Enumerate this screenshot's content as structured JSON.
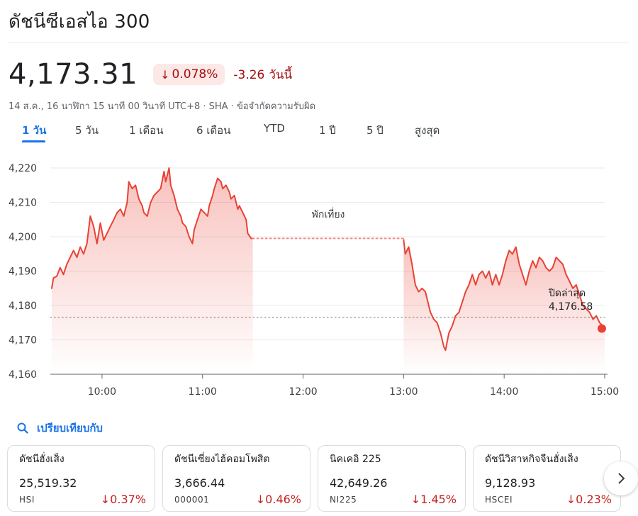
{
  "header": {
    "title": "ดัชนีซีเอสไอ 300",
    "price": "4,173.31",
    "change_pct": "0.078%",
    "change_abs": "-3.26",
    "change_period": "วันนี้",
    "meta": "14 ส.ค., 16 นาฬิกา 15 นาที 00 วินาที UTC+8 · SHA · ข้อจำกัดความรับผิด"
  },
  "tabs": [
    "1 วัน",
    "5 วัน",
    "1 เดือน",
    "6 เดือน",
    "YTD",
    "1 ปี",
    "5 ปี",
    "สูงสุด"
  ],
  "active_tab": "1 วัน",
  "colors": {
    "negative": "#c5221f",
    "accent": "#1a73e8",
    "line": "#e94235"
  },
  "chart_data": {
    "type": "area",
    "x_ticks": [
      "10:00",
      "11:00",
      "12:00",
      "13:00",
      "14:00",
      "15:00"
    ],
    "y_ticks": [
      "4,160",
      "4,170",
      "4,180",
      "4,190",
      "4,200",
      "4,210",
      "4,220"
    ],
    "ylim": [
      4160,
      4220
    ],
    "xlim": [
      "09:30",
      "15:00"
    ],
    "previous_close": 4176.58,
    "previous_close_label": "ปิดล่าสุด",
    "previous_close_text": "4,176.58",
    "break_label": "พักเที่ยง",
    "break_range": [
      "11:30",
      "13:00"
    ],
    "morning": [
      [
        "09:30",
        4185
      ],
      [
        "09:31",
        4188
      ],
      [
        "09:33",
        4188.5
      ],
      [
        "09:35",
        4191
      ],
      [
        "09:37",
        4189
      ],
      [
        "09:39",
        4192
      ],
      [
        "09:41",
        4194
      ],
      [
        "09:43",
        4196
      ],
      [
        "09:45",
        4194
      ],
      [
        "09:47",
        4197
      ],
      [
        "09:49",
        4195
      ],
      [
        "09:51",
        4198
      ],
      [
        "09:53",
        4206
      ],
      [
        "09:55",
        4203
      ],
      [
        "09:57",
        4198
      ],
      [
        "09:59",
        4204
      ],
      [
        "10:01",
        4199
      ],
      [
        "10:03",
        4201
      ],
      [
        "10:05",
        4203
      ],
      [
        "10:07",
        4205
      ],
      [
        "10:09",
        4207
      ],
      [
        "10:11",
        4208
      ],
      [
        "10:13",
        4206
      ],
      [
        "10:15",
        4210
      ],
      [
        "10:16",
        4216
      ],
      [
        "10:18",
        4214
      ],
      [
        "10:20",
        4215
      ],
      [
        "10:22",
        4211
      ],
      [
        "10:24",
        4209
      ],
      [
        "10:25",
        4207
      ],
      [
        "10:27",
        4206
      ],
      [
        "10:29",
        4210
      ],
      [
        "10:31",
        4212
      ],
      [
        "10:33",
        4213
      ],
      [
        "10:35",
        4214
      ],
      [
        "10:37",
        4219
      ],
      [
        "10:38",
        4216
      ],
      [
        "10:40",
        4220
      ],
      [
        "10:41",
        4215
      ],
      [
        "10:43",
        4212
      ],
      [
        "10:45",
        4208
      ],
      [
        "10:47",
        4206
      ],
      [
        "10:48",
        4204
      ],
      [
        "10:50",
        4203
      ],
      [
        "10:52",
        4200
      ],
      [
        "10:54",
        4198
      ],
      [
        "10:55",
        4202
      ],
      [
        "10:57",
        4205
      ],
      [
        "10:59",
        4208
      ],
      [
        "11:01",
        4207
      ],
      [
        "11:03",
        4206
      ],
      [
        "11:04",
        4209
      ],
      [
        "11:06",
        4212
      ],
      [
        "11:07",
        4214
      ],
      [
        "11:09",
        4217
      ],
      [
        "11:11",
        4216
      ],
      [
        "11:12",
        4214
      ],
      [
        "11:14",
        4215
      ],
      [
        "11:16",
        4213
      ],
      [
        "11:17",
        4211
      ],
      [
        "11:19",
        4212
      ],
      [
        "11:21",
        4208
      ],
      [
        "11:22",
        4209
      ],
      [
        "11:24",
        4207
      ],
      [
        "11:26",
        4205
      ],
      [
        "11:27",
        4201
      ],
      [
        "11:29",
        4199.5
      ],
      [
        "11:30",
        4199.5
      ]
    ],
    "afternoon": [
      [
        "13:00",
        4199
      ],
      [
        "13:01",
        4195
      ],
      [
        "13:03",
        4197
      ],
      [
        "13:05",
        4192
      ],
      [
        "13:07",
        4186
      ],
      [
        "13:09",
        4184
      ],
      [
        "13:11",
        4185
      ],
      [
        "13:13",
        4184
      ],
      [
        "13:15",
        4180
      ],
      [
        "13:16",
        4178
      ],
      [
        "13:18",
        4176
      ],
      [
        "13:20",
        4175
      ],
      [
        "13:22",
        4172
      ],
      [
        "13:24",
        4168
      ],
      [
        "13:25",
        4167
      ],
      [
        "13:27",
        4172
      ],
      [
        "13:29",
        4174
      ],
      [
        "13:31",
        4177
      ],
      [
        "13:33",
        4178
      ],
      [
        "13:35",
        4181
      ],
      [
        "13:37",
        4184
      ],
      [
        "13:39",
        4186
      ],
      [
        "13:41",
        4189
      ],
      [
        "13:43",
        4186
      ],
      [
        "13:45",
        4189
      ],
      [
        "13:47",
        4190
      ],
      [
        "13:49",
        4188
      ],
      [
        "13:51",
        4190
      ],
      [
        "13:53",
        4186
      ],
      [
        "13:55",
        4189
      ],
      [
        "13:57",
        4186
      ],
      [
        "13:59",
        4189
      ],
      [
        "14:01",
        4193
      ],
      [
        "14:03",
        4196
      ],
      [
        "14:05",
        4195
      ],
      [
        "14:07",
        4197
      ],
      [
        "14:09",
        4192
      ],
      [
        "14:11",
        4189
      ],
      [
        "14:13",
        4186
      ],
      [
        "14:15",
        4190
      ],
      [
        "14:17",
        4193
      ],
      [
        "14:19",
        4191
      ],
      [
        "14:21",
        4194
      ],
      [
        "14:23",
        4193
      ],
      [
        "14:25",
        4191
      ],
      [
        "14:27",
        4190
      ],
      [
        "14:29",
        4191
      ],
      [
        "14:31",
        4194
      ],
      [
        "14:33",
        4193
      ],
      [
        "14:35",
        4192
      ],
      [
        "14:37",
        4189
      ],
      [
        "14:39",
        4187
      ],
      [
        "14:41",
        4185
      ],
      [
        "14:43",
        4186
      ],
      [
        "14:45",
        4183
      ],
      [
        "14:47",
        4180
      ],
      [
        "14:49",
        4179
      ],
      [
        "14:51",
        4178
      ],
      [
        "14:53",
        4176
      ],
      [
        "14:55",
        4177
      ],
      [
        "14:57",
        4175
      ],
      [
        "14:59",
        4174
      ],
      [
        "15:00",
        4173.31
      ]
    ]
  },
  "compare": {
    "label": "เปรียบเทียบกับ",
    "icon": "search-icon"
  },
  "cards": [
    {
      "name": "ดัชนีฮั่งเส็ง",
      "value": "25,519.32",
      "symbol": "HSI",
      "change": "0.37%"
    },
    {
      "name": "ดัชนีเซี่ยงไฮ้คอมโพสิต",
      "value": "3,666.44",
      "symbol": "000001",
      "change": "0.46%"
    },
    {
      "name": "นิคเคอิ 225",
      "value": "42,649.26",
      "symbol": "NI225",
      "change": "1.45%"
    },
    {
      "name": "ดัชนีวิสาหกิจจีนฮั่งเส็ง",
      "value": "9,128.93",
      "symbol": "HSCEI",
      "change": "0.23%"
    }
  ]
}
